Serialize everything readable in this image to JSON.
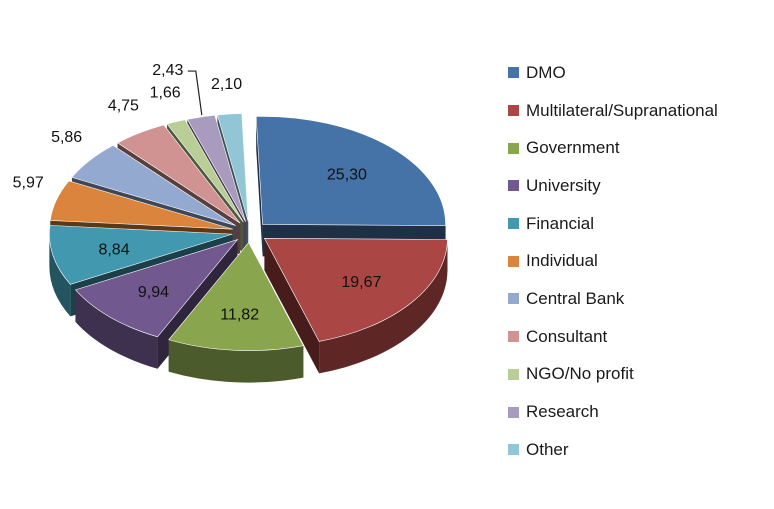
{
  "chart_data": {
    "type": "pie",
    "style": "3d-exploded",
    "title": "",
    "legend_position": "right",
    "categories": [
      "DMO",
      "Multilateral/Supranational",
      "Government",
      "University",
      "Financial",
      "Individual",
      "Central Bank",
      "Consultant",
      "NGO/No profit",
      "Research",
      "Other"
    ],
    "values": [
      25.3,
      19.67,
      11.82,
      9.94,
      8.84,
      5.97,
      5.86,
      4.75,
      1.66,
      2.43,
      2.1
    ],
    "value_labels": [
      "25,30",
      "19,67",
      "11,82",
      "9,94",
      "8,84",
      "5,97",
      "5,86",
      "4,75",
      "1,66",
      "2,43",
      "2,10"
    ],
    "colors": [
      "#4572a7",
      "#aa4643",
      "#89a54e",
      "#71588f",
      "#4198af",
      "#db843d",
      "#93a9cf",
      "#d19392",
      "#b9cd96",
      "#a99bbd",
      "#92c5d5"
    ]
  }
}
